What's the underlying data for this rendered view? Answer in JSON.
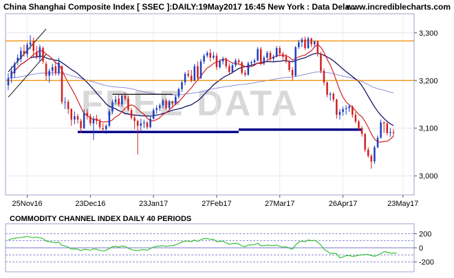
{
  "header": {
    "title": "China Shanghai Composite Index [ SSEC ]:DAILY:19May2017 16:45 New York : Data Dela...",
    "site": "www.incrediblecharts.com"
  },
  "watermark": "FREE DATA",
  "chart_data": [
    {
      "type": "candlestick",
      "title": "China Shanghai Composite Index [ SSEC ]:DAILY:19May2017 16:45 New York : Data Dela...",
      "x_tick_labels": [
        "25Nov16",
        "23Dec16",
        "23Jan17",
        "27Feb17",
        "27Mar17",
        "26Apr17",
        "23May17"
      ],
      "y_tick_labels": [
        "3,300",
        "3,200",
        "3,100",
        "3,000"
      ],
      "ylim": [
        2960,
        3340
      ],
      "grid": true,
      "colors": {
        "up": "#1f3fbf",
        "down": "#d21f1f",
        "ma_short": "#d21f1f",
        "ma_long": "#000060",
        "ma_very_long": "#8c8cdc",
        "support": "#0a0a8c",
        "resistance": "#f08c00",
        "channel": "#111111"
      },
      "horizontal_levels": [
        {
          "name": "resistance",
          "value": 3283
        },
        {
          "name": "resistance",
          "value": 3200
        },
        {
          "name": "support",
          "value": 3092
        },
        {
          "name": "support",
          "value": 3097
        },
        {
          "name": "trend",
          "value": 3171
        }
      ],
      "bars": [
        {
          "d": "17Nov16",
          "o": 3190,
          "h": 3215,
          "l": 3180,
          "c": 3205
        },
        {
          "d": "18Nov16",
          "o": 3205,
          "h": 3230,
          "l": 3195,
          "c": 3220
        },
        {
          "d": "21Nov16",
          "o": 3215,
          "h": 3240,
          "l": 3205,
          "c": 3235
        },
        {
          "d": "22Nov16",
          "o": 3240,
          "h": 3255,
          "l": 3232,
          "c": 3248
        },
        {
          "d": "23Nov16",
          "o": 3245,
          "h": 3270,
          "l": 3238,
          "c": 3262
        },
        {
          "d": "24Nov16",
          "o": 3262,
          "h": 3275,
          "l": 3250,
          "c": 3256
        },
        {
          "d": "25Nov16",
          "o": 3255,
          "h": 3280,
          "l": 3248,
          "c": 3275
        },
        {
          "d": "28Nov16",
          "o": 3275,
          "h": 3295,
          "l": 3265,
          "c": 3280
        },
        {
          "d": "29Nov16",
          "o": 3282,
          "h": 3290,
          "l": 3250,
          "c": 3262
        },
        {
          "d": "30Nov16",
          "o": 3260,
          "h": 3272,
          "l": 3245,
          "c": 3250
        },
        {
          "d": "1Dec16",
          "o": 3248,
          "h": 3275,
          "l": 3240,
          "c": 3270
        },
        {
          "d": "2Dec16",
          "o": 3268,
          "h": 3272,
          "l": 3235,
          "c": 3240
        },
        {
          "d": "5Dec16",
          "o": 3235,
          "h": 3240,
          "l": 3200,
          "c": 3210
        },
        {
          "d": "6Dec16",
          "o": 3210,
          "h": 3225,
          "l": 3195,
          "c": 3220
        },
        {
          "d": "7Dec16",
          "o": 3220,
          "h": 3235,
          "l": 3210,
          "c": 3228
        },
        {
          "d": "8Dec16",
          "o": 3230,
          "h": 3240,
          "l": 3210,
          "c": 3215
        },
        {
          "d": "9Dec16",
          "o": 3215,
          "h": 3248,
          "l": 3210,
          "c": 3238
        },
        {
          "d": "12Dec16",
          "o": 3230,
          "h": 3232,
          "l": 3150,
          "c": 3155
        },
        {
          "d": "13Dec16",
          "o": 3155,
          "h": 3165,
          "l": 3140,
          "c": 3155
        },
        {
          "d": "14Dec16",
          "o": 3155,
          "h": 3160,
          "l": 3130,
          "c": 3140
        },
        {
          "d": "15Dec16",
          "o": 3140,
          "h": 3142,
          "l": 3105,
          "c": 3118
        },
        {
          "d": "16Dec16",
          "o": 3118,
          "h": 3135,
          "l": 3108,
          "c": 3125
        },
        {
          "d": "19Dec16",
          "o": 3125,
          "h": 3130,
          "l": 3110,
          "c": 3118
        },
        {
          "d": "20Dec16",
          "o": 3115,
          "h": 3120,
          "l": 3090,
          "c": 3100
        },
        {
          "d": "21Dec16",
          "o": 3100,
          "h": 3140,
          "l": 3098,
          "c": 3132
        },
        {
          "d": "22Dec16",
          "o": 3132,
          "h": 3140,
          "l": 3118,
          "c": 3125
        },
        {
          "d": "23Dec16",
          "o": 3125,
          "h": 3130,
          "l": 3105,
          "c": 3110
        },
        {
          "d": "26Dec16",
          "o": 3110,
          "h": 3125,
          "l": 3075,
          "c": 3120
        },
        {
          "d": "27Dec16",
          "o": 3120,
          "h": 3128,
          "l": 3108,
          "c": 3115
        },
        {
          "d": "28Dec16",
          "o": 3115,
          "h": 3120,
          "l": 3098,
          "c": 3102
        },
        {
          "d": "29Dec16",
          "o": 3100,
          "h": 3110,
          "l": 3092,
          "c": 3098
        },
        {
          "d": "30Dec16",
          "o": 3098,
          "h": 3108,
          "l": 3088,
          "c": 3105
        },
        {
          "d": "3Jan17",
          "o": 3105,
          "h": 3140,
          "l": 3102,
          "c": 3135
        },
        {
          "d": "4Jan17",
          "o": 3135,
          "h": 3160,
          "l": 3130,
          "c": 3155
        },
        {
          "d": "5Jan17",
          "o": 3155,
          "h": 3168,
          "l": 3150,
          "c": 3160
        },
        {
          "d": "6Jan17",
          "o": 3162,
          "h": 3170,
          "l": 3145,
          "c": 3150
        },
        {
          "d": "9Jan17",
          "o": 3150,
          "h": 3172,
          "l": 3145,
          "c": 3168
        },
        {
          "d": "10Jan17",
          "o": 3168,
          "h": 3175,
          "l": 3158,
          "c": 3162
        },
        {
          "d": "11Jan17",
          "o": 3162,
          "h": 3168,
          "l": 3135,
          "c": 3138
        },
        {
          "d": "12Jan17",
          "o": 3138,
          "h": 3142,
          "l": 3118,
          "c": 3122
        },
        {
          "d": "13Jan17",
          "o": 3122,
          "h": 3130,
          "l": 3098,
          "c": 3115
        },
        {
          "d": "16Jan17",
          "o": 3115,
          "h": 3118,
          "l": 3045,
          "c": 3105
        },
        {
          "d": "17Jan17",
          "o": 3105,
          "h": 3120,
          "l": 3095,
          "c": 3110
        },
        {
          "d": "18Jan17",
          "o": 3110,
          "h": 3118,
          "l": 3100,
          "c": 3112
        },
        {
          "d": "19Jan17",
          "o": 3112,
          "h": 3115,
          "l": 3098,
          "c": 3102
        },
        {
          "d": "20Jan17",
          "o": 3102,
          "h": 3125,
          "l": 3100,
          "c": 3120
        },
        {
          "d": "23Jan17",
          "o": 3120,
          "h": 3142,
          "l": 3118,
          "c": 3138
        },
        {
          "d": "24Jan17",
          "o": 3138,
          "h": 3148,
          "l": 3130,
          "c": 3142
        },
        {
          "d": "25Jan17",
          "o": 3142,
          "h": 3152,
          "l": 3136,
          "c": 3148
        },
        {
          "d": "26Jan17",
          "o": 3148,
          "h": 3162,
          "l": 3142,
          "c": 3158
        },
        {
          "d": "3Feb17",
          "o": 3158,
          "h": 3162,
          "l": 3138,
          "c": 3142
        },
        {
          "d": "6Feb17",
          "o": 3142,
          "h": 3160,
          "l": 3140,
          "c": 3156
        },
        {
          "d": "7Feb17",
          "o": 3156,
          "h": 3158,
          "l": 3142,
          "c": 3152
        },
        {
          "d": "8Feb17",
          "o": 3152,
          "h": 3170,
          "l": 3148,
          "c": 3166
        },
        {
          "d": "9Feb17",
          "o": 3166,
          "h": 3185,
          "l": 3162,
          "c": 3182
        },
        {
          "d": "10Feb17",
          "o": 3182,
          "h": 3200,
          "l": 3176,
          "c": 3196
        },
        {
          "d": "13Feb17",
          "o": 3196,
          "h": 3218,
          "l": 3190,
          "c": 3214
        },
        {
          "d": "14Feb17",
          "o": 3214,
          "h": 3222,
          "l": 3206,
          "c": 3210
        },
        {
          "d": "15Feb17",
          "o": 3210,
          "h": 3222,
          "l": 3196,
          "c": 3200
        },
        {
          "d": "16Feb17",
          "o": 3200,
          "h": 3235,
          "l": 3198,
          "c": 3230
        },
        {
          "d": "17Feb17",
          "o": 3230,
          "h": 3240,
          "l": 3200,
          "c": 3205
        },
        {
          "d": "20Feb17",
          "o": 3205,
          "h": 3245,
          "l": 3203,
          "c": 3240
        },
        {
          "d": "21Feb17",
          "o": 3240,
          "h": 3256,
          "l": 3235,
          "c": 3252
        },
        {
          "d": "22Feb17",
          "o": 3252,
          "h": 3262,
          "l": 3248,
          "c": 3258
        },
        {
          "d": "23Feb17",
          "o": 3258,
          "h": 3266,
          "l": 3240,
          "c": 3248
        },
        {
          "d": "24Feb17",
          "o": 3248,
          "h": 3260,
          "l": 3244,
          "c": 3252
        },
        {
          "d": "27Feb17",
          "o": 3252,
          "h": 3258,
          "l": 3222,
          "c": 3228
        },
        {
          "d": "28Feb17",
          "o": 3228,
          "h": 3245,
          "l": 3225,
          "c": 3240
        },
        {
          "d": "1Mar17",
          "o": 3240,
          "h": 3250,
          "l": 3234,
          "c": 3246
        },
        {
          "d": "2Mar17",
          "o": 3246,
          "h": 3248,
          "l": 3225,
          "c": 3230
        },
        {
          "d": "3Mar17",
          "o": 3230,
          "h": 3236,
          "l": 3212,
          "c": 3218
        },
        {
          "d": "6Mar17",
          "o": 3218,
          "h": 3236,
          "l": 3215,
          "c": 3232
        },
        {
          "d": "7Mar17",
          "o": 3232,
          "h": 3246,
          "l": 3228,
          "c": 3242
        },
        {
          "d": "8Mar17",
          "o": 3242,
          "h": 3246,
          "l": 3234,
          "c": 3238
        },
        {
          "d": "9Mar17",
          "o": 3238,
          "h": 3240,
          "l": 3212,
          "c": 3216
        },
        {
          "d": "10Mar17",
          "o": 3216,
          "h": 3222,
          "l": 3208,
          "c": 3212
        },
        {
          "d": "13Mar17",
          "o": 3212,
          "h": 3240,
          "l": 3210,
          "c": 3236
        },
        {
          "d": "14Mar17",
          "o": 3236,
          "h": 3242,
          "l": 3232,
          "c": 3238
        },
        {
          "d": "15Mar17",
          "o": 3238,
          "h": 3246,
          "l": 3234,
          "c": 3242
        },
        {
          "d": "16Mar17",
          "o": 3242,
          "h": 3270,
          "l": 3240,
          "c": 3266
        },
        {
          "d": "17Mar17",
          "o": 3266,
          "h": 3270,
          "l": 3232,
          "c": 3236
        },
        {
          "d": "20Mar17",
          "o": 3236,
          "h": 3252,
          "l": 3232,
          "c": 3248
        },
        {
          "d": "21Mar17",
          "o": 3248,
          "h": 3262,
          "l": 3244,
          "c": 3258
        },
        {
          "d": "22Mar17",
          "o": 3258,
          "h": 3262,
          "l": 3240,
          "c": 3246
        },
        {
          "d": "23Mar17",
          "o": 3246,
          "h": 3254,
          "l": 3238,
          "c": 3250
        },
        {
          "d": "24Mar17",
          "o": 3250,
          "h": 3272,
          "l": 3248,
          "c": 3268
        },
        {
          "d": "27Mar17",
          "o": 3268,
          "h": 3272,
          "l": 3250,
          "c": 3256
        },
        {
          "d": "28Mar17",
          "o": 3256,
          "h": 3260,
          "l": 3244,
          "c": 3250
        },
        {
          "d": "29Mar17",
          "o": 3250,
          "h": 3256,
          "l": 3236,
          "c": 3240
        },
        {
          "d": "30Mar17",
          "o": 3240,
          "h": 3242,
          "l": 3218,
          "c": 3222
        },
        {
          "d": "31Mar17",
          "o": 3222,
          "h": 3228,
          "l": 3200,
          "c": 3210
        },
        {
          "d": "5Apr17",
          "o": 3210,
          "h": 3272,
          "l": 3208,
          "c": 3270
        },
        {
          "d": "6Apr17",
          "o": 3270,
          "h": 3285,
          "l": 3266,
          "c": 3280
        },
        {
          "d": "7Apr17",
          "o": 3280,
          "h": 3290,
          "l": 3270,
          "c": 3286
        },
        {
          "d": "10Apr17",
          "o": 3286,
          "h": 3292,
          "l": 3264,
          "c": 3268
        },
        {
          "d": "11Apr17",
          "o": 3268,
          "h": 3292,
          "l": 3266,
          "c": 3288
        },
        {
          "d": "12Apr17",
          "o": 3288,
          "h": 3290,
          "l": 3270,
          "c": 3276
        },
        {
          "d": "13Apr17",
          "o": 3276,
          "h": 3284,
          "l": 3270,
          "c": 3282
        },
        {
          "d": "14Apr17",
          "o": 3282,
          "h": 3284,
          "l": 3250,
          "c": 3256
        },
        {
          "d": "17Apr17",
          "o": 3256,
          "h": 3260,
          "l": 3215,
          "c": 3220
        },
        {
          "d": "18Apr17",
          "o": 3220,
          "h": 3225,
          "l": 3190,
          "c": 3196
        },
        {
          "d": "19Apr17",
          "o": 3196,
          "h": 3198,
          "l": 3165,
          "c": 3170
        },
        {
          "d": "20Apr17",
          "o": 3170,
          "h": 3176,
          "l": 3158,
          "c": 3172
        },
        {
          "d": "21Apr17",
          "o": 3172,
          "h": 3175,
          "l": 3155,
          "c": 3160
        },
        {
          "d": "24Apr17",
          "o": 3160,
          "h": 3162,
          "l": 3120,
          "c": 3128
        },
        {
          "d": "25Apr17",
          "o": 3128,
          "h": 3140,
          "l": 3118,
          "c": 3134
        },
        {
          "d": "26Apr17",
          "o": 3134,
          "h": 3145,
          "l": 3126,
          "c": 3140
        },
        {
          "d": "27Apr17",
          "o": 3140,
          "h": 3148,
          "l": 3128,
          "c": 3142
        },
        {
          "d": "28Apr17",
          "o": 3142,
          "h": 3150,
          "l": 3134,
          "c": 3146
        },
        {
          "d": "2May17",
          "o": 3146,
          "h": 3148,
          "l": 3122,
          "c": 3128
        },
        {
          "d": "3May17",
          "o": 3128,
          "h": 3134,
          "l": 3110,
          "c": 3114
        },
        {
          "d": "4May17",
          "o": 3114,
          "h": 3118,
          "l": 3095,
          "c": 3100
        },
        {
          "d": "5May17",
          "o": 3100,
          "h": 3104,
          "l": 3082,
          "c": 3088
        },
        {
          "d": "8May17",
          "o": 3088,
          "h": 3090,
          "l": 3050,
          "c": 3055
        },
        {
          "d": "9May17",
          "o": 3055,
          "h": 3060,
          "l": 3038,
          "c": 3042
        },
        {
          "d": "10May17",
          "o": 3042,
          "h": 3046,
          "l": 3015,
          "c": 3030
        },
        {
          "d": "11May17",
          "o": 3030,
          "h": 3064,
          "l": 3025,
          "c": 3060
        },
        {
          "d": "12May17",
          "o": 3060,
          "h": 3085,
          "l": 3058,
          "c": 3080
        },
        {
          "d": "15May17",
          "o": 3080,
          "h": 3118,
          "l": 3078,
          "c": 3112
        },
        {
          "d": "16May17",
          "o": 3112,
          "h": 3115,
          "l": 3090,
          "c": 3110
        },
        {
          "d": "17May17",
          "o": 3110,
          "h": 3112,
          "l": 3085,
          "c": 3090
        },
        {
          "d": "18May17",
          "o": 3090,
          "h": 3100,
          "l": 3082,
          "c": 3092
        },
        {
          "d": "19May17",
          "o": 3092,
          "h": 3098,
          "l": 3082,
          "c": 3090
        }
      ]
    },
    {
      "type": "line",
      "title": "COMMODITY CHANNEL INDEX DAILY 40 PERIODS",
      "y_tick_labels": [
        "200",
        "0",
        "-200"
      ],
      "ylim": [
        -300,
        300
      ],
      "reference_lines": [
        200,
        100,
        0,
        -100,
        -200
      ],
      "colors": {
        "line": "#22bb22",
        "reference": "#7777cc"
      },
      "values": [
        110,
        125,
        135,
        140,
        145,
        152,
        160,
        150,
        145,
        150,
        142,
        130,
        95,
        85,
        80,
        70,
        80,
        35,
        25,
        10,
        -20,
        -15,
        -20,
        -40,
        -20,
        -25,
        -35,
        -15,
        -20,
        -35,
        -45,
        -35,
        -10,
        15,
        20,
        10,
        25,
        20,
        -5,
        -25,
        -35,
        -40,
        -30,
        -25,
        -35,
        -10,
        10,
        20,
        25,
        30,
        20,
        30,
        30,
        45,
        60,
        80,
        95,
        95,
        85,
        110,
        90,
        115,
        130,
        130,
        120,
        120,
        85,
        90,
        95,
        70,
        50,
        60,
        65,
        55,
        25,
        15,
        40,
        40,
        45,
        65,
        30,
        30,
        40,
        35,
        30,
        40,
        20,
        10,
        15,
        -5,
        -20,
        40,
        80,
        95,
        85,
        110,
        100,
        105,
        80,
        40,
        -20,
        -50,
        -80,
        -75,
        -85,
        -140,
        -130,
        -110,
        -110,
        -120,
        -115,
        -105,
        -100,
        -95,
        -95,
        -110,
        -120,
        -105,
        -80,
        -55,
        -60,
        -75,
        -75,
        -72
      ]
    }
  ]
}
